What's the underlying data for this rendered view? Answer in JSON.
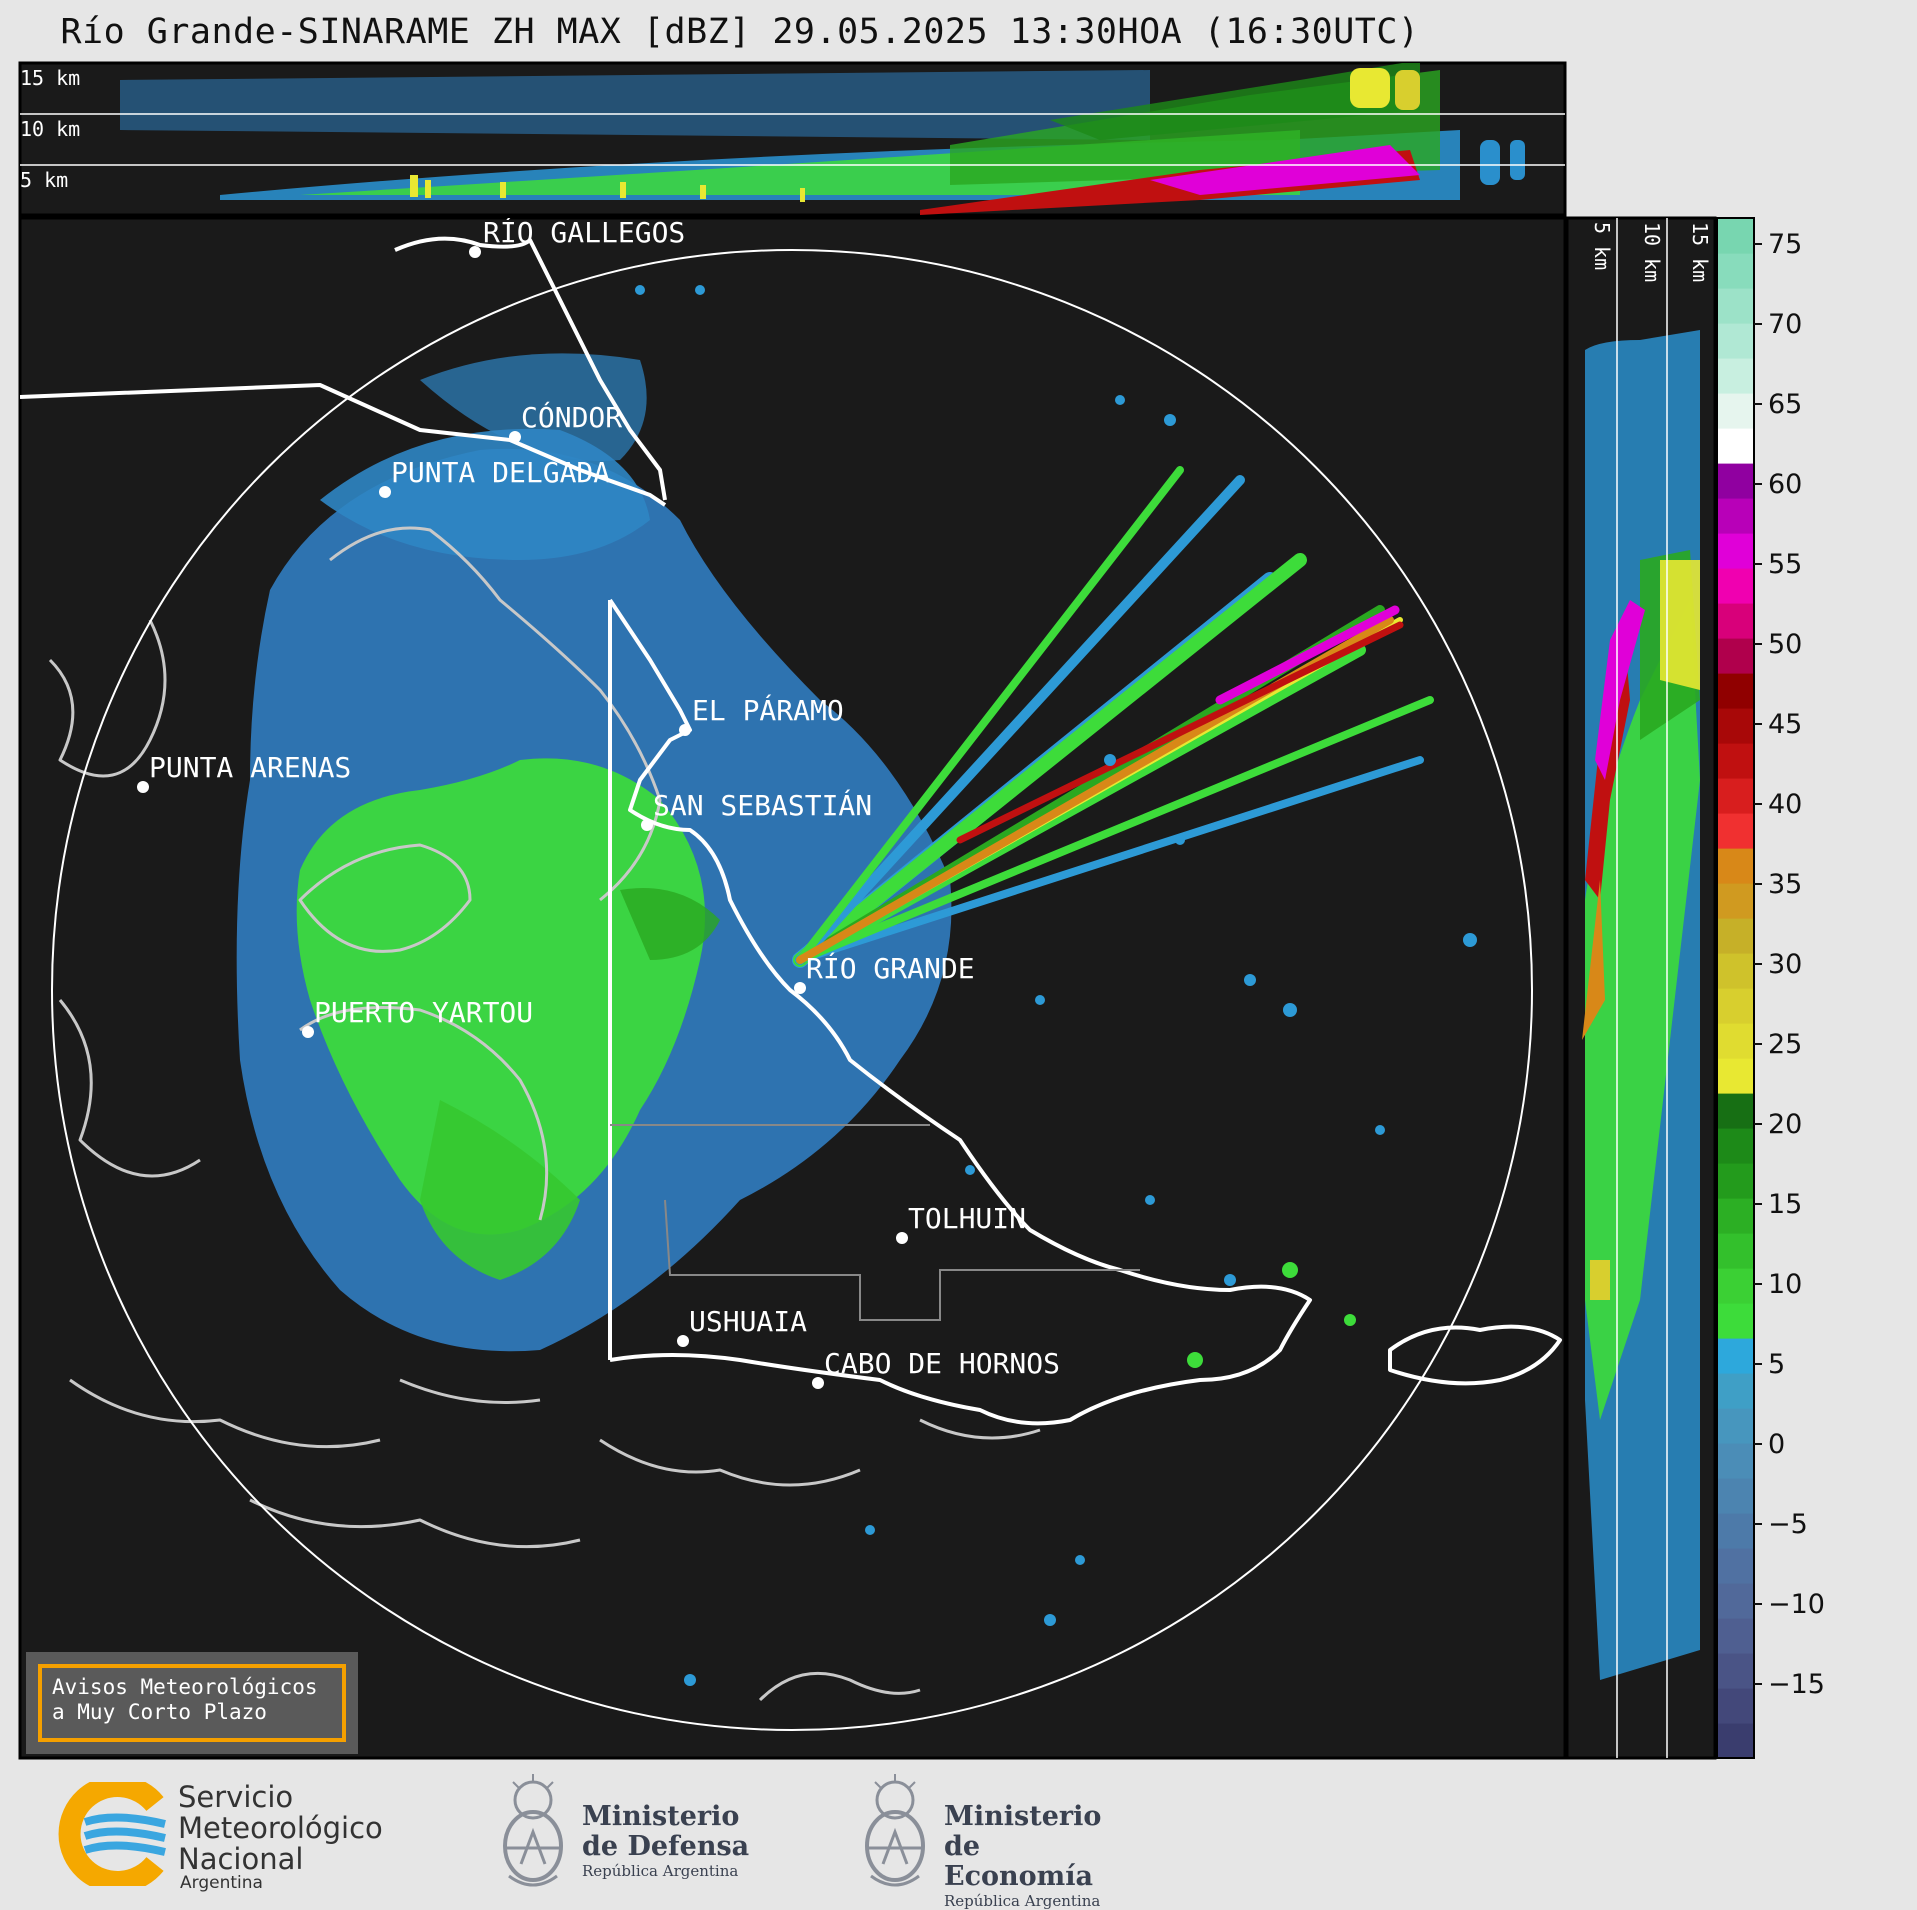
{
  "title": "Río Grande-SINARAME ZH MAX [dBZ] 29.05.2025 13:30HOA (16:30UTC)",
  "top_panel": {
    "height_labels": [
      "15 km",
      "10 km",
      "5 km"
    ]
  },
  "side_panel": {
    "height_labels": [
      "5 km",
      "10 km",
      "15 km"
    ]
  },
  "cities": [
    {
      "name": "RÍO GALLEGOS"
    },
    {
      "name": "CÓNDOR"
    },
    {
      "name": "PUNTA DELGADA"
    },
    {
      "name": "EL PÁRAMO"
    },
    {
      "name": "PUNTA ARENAS"
    },
    {
      "name": "SAN SEBASTIÁN"
    },
    {
      "name": "RÍO GRANDE"
    },
    {
      "name": "PUERTO YARTOU"
    },
    {
      "name": "TOLHUIN"
    },
    {
      "name": "USHUAIA"
    },
    {
      "name": "CABO DE HORNOS"
    }
  ],
  "colorbar": {
    "unit": "dBZ",
    "ticks": [
      "75",
      "70",
      "65",
      "60",
      "55",
      "50",
      "45",
      "40",
      "35",
      "30",
      "25",
      "20",
      "15",
      "10",
      "5",
      "0",
      "−5",
      "−10",
      "−15"
    ],
    "colors": [
      "#3a3d6e",
      "#43487a",
      "#4a5486",
      "#4f5f91",
      "#51699a",
      "#5071a2",
      "#4d7aa9",
      "#4c84b0",
      "#4b8db7",
      "#4796be",
      "#3f9fc6",
      "#2da8dc",
      "#3ddc3a",
      "#3bd034",
      "#33c02c",
      "#2caf24",
      "#239b1c",
      "#1d8a18",
      "#176f14",
      "#e8e832",
      "#e0dc30",
      "#d8cf2e",
      "#cfc22b",
      "#c6b028",
      "#d09a20",
      "#d88818",
      "#f03030",
      "#d81e1e",
      "#c01010",
      "#a80808",
      "#900000",
      "#b0004c",
      "#d8007a",
      "#f000b0",
      "#e000d8",
      "#b800b8",
      "#9000a0",
      "#ffffff",
      "#e6f5ee",
      "#c8efe0",
      "#b0e8d4",
      "#9ce2c8",
      "#88dcbc",
      "#78d6b0"
    ]
  },
  "avisos_box": {
    "line1": "Avisos Meteorológicos",
    "line2": "a Muy Corto Plazo"
  },
  "logos": {
    "smn": {
      "line1": "Servicio",
      "line2": "Meteorológico",
      "line3": "Nacional",
      "sub": "Argentina"
    },
    "defensa": {
      "line1": "Ministerio",
      "line2": "de Defensa",
      "sub": "República Argentina"
    },
    "economia": {
      "line1": "Ministerio",
      "line2": "de Economía",
      "sub": "República Argentina"
    }
  },
  "colors": {
    "background": "#1a1a1a",
    "border": "#000000",
    "range_ring": "#ffffff"
  }
}
